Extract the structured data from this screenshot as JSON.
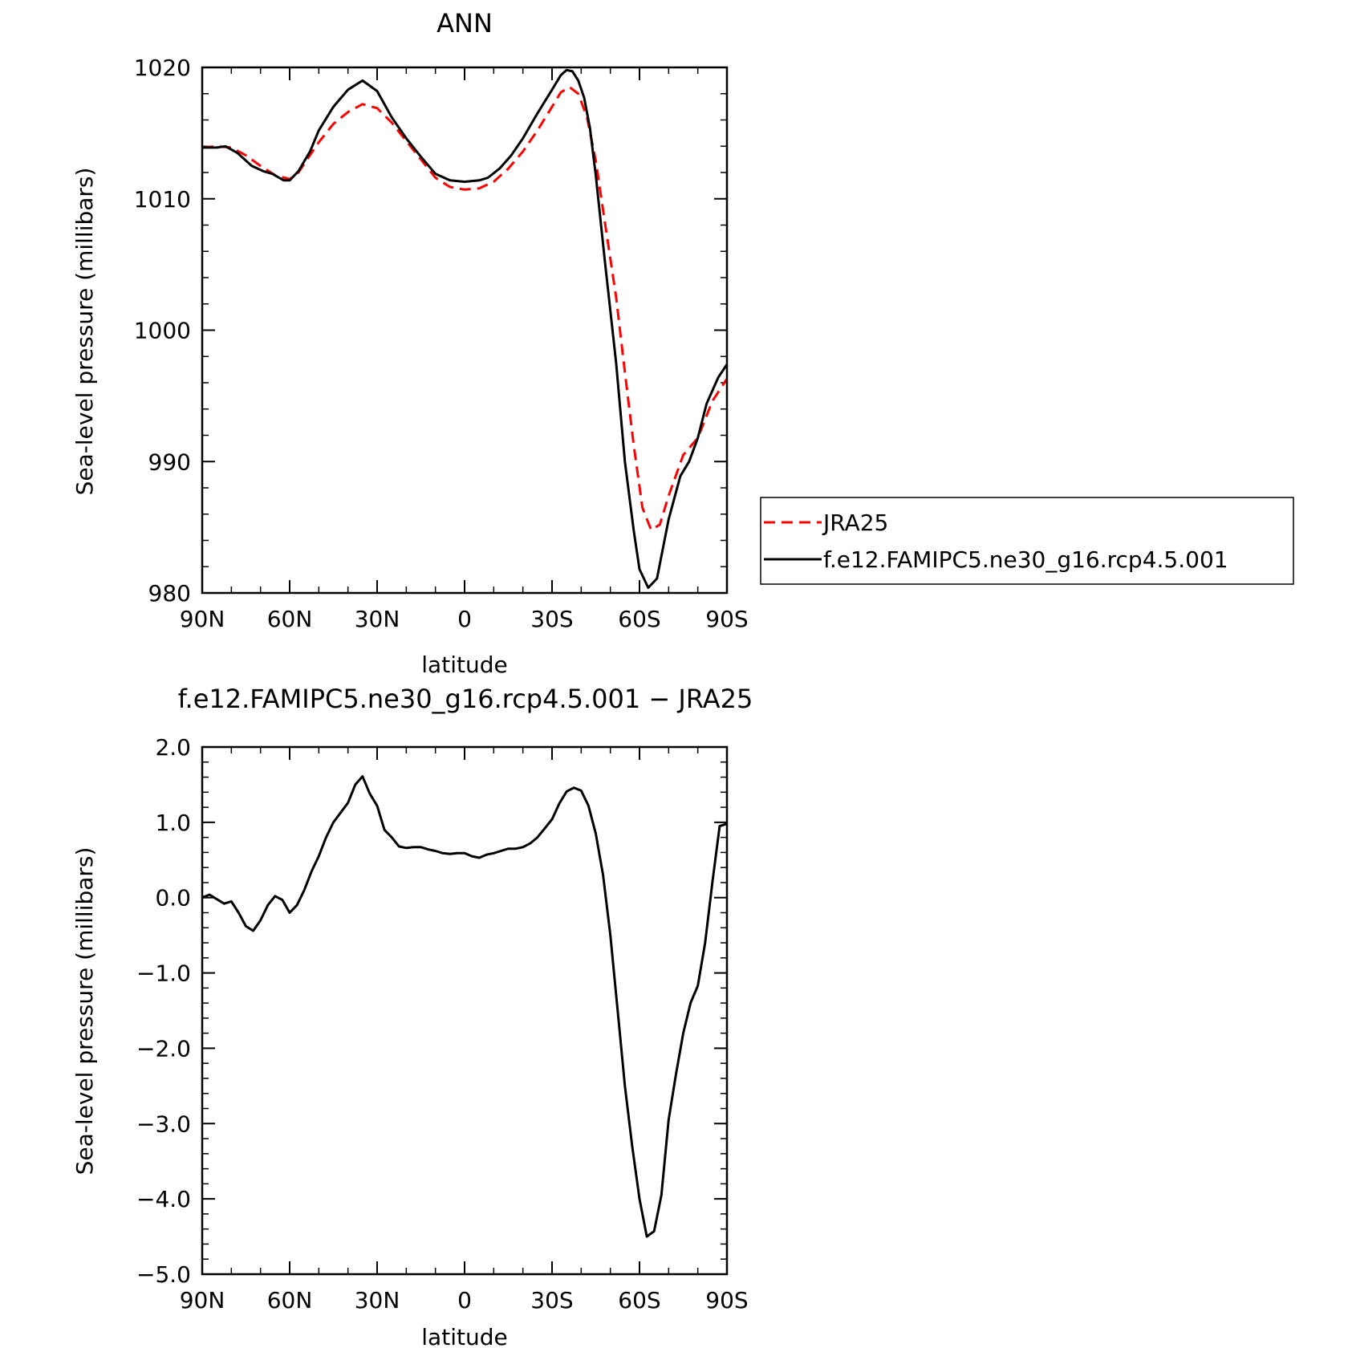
{
  "chart_data": [
    {
      "type": "line",
      "title": "ANN",
      "xlabel": "latitude",
      "ylabel": "Sea-level pressure (millibars)",
      "xlim": [
        90,
        -90
      ],
      "ylim": [
        980,
        1020
      ],
      "x_ticks": [
        {
          "value": 90,
          "label": "90N"
        },
        {
          "value": 60,
          "label": "60N"
        },
        {
          "value": 30,
          "label": "30N"
        },
        {
          "value": 0,
          "label": "0"
        },
        {
          "value": -30,
          "label": "30S"
        },
        {
          "value": -60,
          "label": "60S"
        },
        {
          "value": -90,
          "label": "90S"
        }
      ],
      "y_ticks": [
        {
          "value": 1020,
          "label": "1020"
        },
        {
          "value": 1010,
          "label": "1010"
        },
        {
          "value": 1000,
          "label": "1000"
        },
        {
          "value": 990,
          "label": "990"
        },
        {
          "value": 980,
          "label": "980"
        }
      ],
      "legend_position": "right",
      "series": [
        {
          "name": "JRA25",
          "color": "#ff0000",
          "dash": true,
          "points": [
            [
              90,
              1013.9
            ],
            [
              85,
              1014.0
            ],
            [
              80,
              1013.9
            ],
            [
              75,
              1013.3
            ],
            [
              70,
              1012.5
            ],
            [
              65,
              1011.8
            ],
            [
              60,
              1011.5
            ],
            [
              57,
              1012.0
            ],
            [
              54,
              1013.0
            ],
            [
              50,
              1014.3
            ],
            [
              45,
              1015.7
            ],
            [
              40,
              1016.6
            ],
            [
              35,
              1017.2
            ],
            [
              30,
              1016.9
            ],
            [
              25,
              1015.8
            ],
            [
              20,
              1014.4
            ],
            [
              15,
              1013.0
            ],
            [
              10,
              1011.6
            ],
            [
              5,
              1010.9
            ],
            [
              0,
              1010.7
            ],
            [
              -5,
              1010.8
            ],
            [
              -10,
              1011.3
            ],
            [
              -15,
              1012.3
            ],
            [
              -20,
              1013.6
            ],
            [
              -25,
              1015.2
            ],
            [
              -30,
              1017.0
            ],
            [
              -33,
              1018.1
            ],
            [
              -36,
              1018.5
            ],
            [
              -39,
              1018.0
            ],
            [
              -42,
              1016.2
            ],
            [
              -45,
              1012.9
            ],
            [
              -48,
              1008.4
            ],
            [
              -52,
              1002.5
            ],
            [
              -55,
              996.8
            ],
            [
              -58,
              991.3
            ],
            [
              -61,
              986.5
            ],
            [
              -64,
              984.8
            ],
            [
              -67,
              985.2
            ],
            [
              -70,
              987.4
            ],
            [
              -75,
              990.5
            ],
            [
              -80,
              991.8
            ],
            [
              -85,
              994.6
            ],
            [
              -90,
              996.3
            ]
          ]
        },
        {
          "name": "f.e12.FAMIPC5.ne30_g16.rcp4.5.001",
          "color": "#000000",
          "dash": false,
          "points": [
            [
              90,
              1013.9
            ],
            [
              85,
              1013.9
            ],
            [
              82,
              1014.0
            ],
            [
              78,
              1013.5
            ],
            [
              73,
              1012.5
            ],
            [
              69,
              1012.1
            ],
            [
              66,
              1011.9
            ],
            [
              62,
              1011.4
            ],
            [
              60,
              1011.4
            ],
            [
              57,
              1012.1
            ],
            [
              53,
              1013.6
            ],
            [
              50,
              1015.2
            ],
            [
              45,
              1017.0
            ],
            [
              40,
              1018.3
            ],
            [
              35,
              1019.0
            ],
            [
              30,
              1018.2
            ],
            [
              25,
              1016.2
            ],
            [
              20,
              1014.6
            ],
            [
              15,
              1013.2
            ],
            [
              10,
              1011.9
            ],
            [
              5,
              1011.4
            ],
            [
              0,
              1011.3
            ],
            [
              -5,
              1011.4
            ],
            [
              -8,
              1011.6
            ],
            [
              -12,
              1012.3
            ],
            [
              -16,
              1013.3
            ],
            [
              -20,
              1014.6
            ],
            [
              -25,
              1016.5
            ],
            [
              -30,
              1018.3
            ],
            [
              -33,
              1019.4
            ],
            [
              -35,
              1019.8
            ],
            [
              -37,
              1019.7
            ],
            [
              -39,
              1019.0
            ],
            [
              -41,
              1017.7
            ],
            [
              -43,
              1015.4
            ],
            [
              -45,
              1011.8
            ],
            [
              -48,
              1005.5
            ],
            [
              -52,
              997.5
            ],
            [
              -55,
              990.0
            ],
            [
              -58,
              984.8
            ],
            [
              -60,
              981.8
            ],
            [
              -63,
              980.4
            ],
            [
              -66,
              981.1
            ],
            [
              -70,
              985.6
            ],
            [
              -74,
              988.9
            ],
            [
              -77,
              990.0
            ],
            [
              -80,
              991.8
            ],
            [
              -83,
              994.4
            ],
            [
              -87,
              996.4
            ],
            [
              -90,
              997.4
            ]
          ]
        }
      ]
    },
    {
      "type": "line",
      "title": "f.e12.FAMIPC5.ne30_g16.rcp4.5.001 − JRA25",
      "xlabel": "latitude",
      "ylabel": "Sea-level pressure (millibars)",
      "xlim": [
        90,
        -90
      ],
      "ylim": [
        -5.0,
        2.0
      ],
      "x_ticks": [
        {
          "value": 90,
          "label": "90N"
        },
        {
          "value": 60,
          "label": "60N"
        },
        {
          "value": 30,
          "label": "30N"
        },
        {
          "value": 0,
          "label": "0"
        },
        {
          "value": -30,
          "label": "30S"
        },
        {
          "value": -60,
          "label": "60S"
        },
        {
          "value": -90,
          "label": "90S"
        }
      ],
      "y_ticks": [
        {
          "value": 2.0,
          "label": "2.0"
        },
        {
          "value": 1.0,
          "label": "1.0"
        },
        {
          "value": 0.0,
          "label": "0.0"
        },
        {
          "value": -1.0,
          "label": "−1.0"
        },
        {
          "value": -2.0,
          "label": "−2.0"
        },
        {
          "value": -3.0,
          "label": "−3.0"
        },
        {
          "value": -4.0,
          "label": "−4.0"
        },
        {
          "value": -5.0,
          "label": "−5.0"
        }
      ],
      "series": [
        {
          "color": "#000000",
          "dash": false,
          "points": [
            [
              90,
              0.0
            ],
            [
              87.5,
              0.04
            ],
            [
              85,
              -0.02
            ],
            [
              82.5,
              -0.08
            ],
            [
              80,
              -0.05
            ],
            [
              77.5,
              -0.2
            ],
            [
              75,
              -0.38
            ],
            [
              72.5,
              -0.44
            ],
            [
              70,
              -0.3
            ],
            [
              67.5,
              -0.1
            ],
            [
              65,
              0.02
            ],
            [
              62.5,
              -0.03
            ],
            [
              60,
              -0.2
            ],
            [
              57.5,
              -0.1
            ],
            [
              55,
              0.1
            ],
            [
              52.5,
              0.35
            ],
            [
              50,
              0.55
            ],
            [
              47.5,
              0.8
            ],
            [
              45,
              1.0
            ],
            [
              42.5,
              1.13
            ],
            [
              40,
              1.26
            ],
            [
              37.5,
              1.5
            ],
            [
              35,
              1.61
            ],
            [
              32.5,
              1.38
            ],
            [
              30,
              1.22
            ],
            [
              27.5,
              0.9
            ],
            [
              25,
              0.8
            ],
            [
              22.5,
              0.68
            ],
            [
              20,
              0.66
            ],
            [
              17.5,
              0.67
            ],
            [
              15,
              0.67
            ],
            [
              12.5,
              0.64
            ],
            [
              10,
              0.62
            ],
            [
              7.5,
              0.59
            ],
            [
              5,
              0.58
            ],
            [
              2.5,
              0.59
            ],
            [
              0,
              0.59
            ],
            [
              -2.5,
              0.55
            ],
            [
              -5,
              0.53
            ],
            [
              -7.5,
              0.57
            ],
            [
              -10,
              0.59
            ],
            [
              -12.5,
              0.62
            ],
            [
              -15,
              0.65
            ],
            [
              -17.5,
              0.65
            ],
            [
              -20,
              0.67
            ],
            [
              -22.5,
              0.72
            ],
            [
              -25,
              0.8
            ],
            [
              -27.5,
              0.92
            ],
            [
              -30,
              1.04
            ],
            [
              -32.5,
              1.25
            ],
            [
              -35,
              1.41
            ],
            [
              -37.5,
              1.46
            ],
            [
              -40,
              1.42
            ],
            [
              -42.5,
              1.22
            ],
            [
              -45,
              0.85
            ],
            [
              -47.5,
              0.3
            ],
            [
              -50,
              -0.5
            ],
            [
              -52.5,
              -1.5
            ],
            [
              -55,
              -2.5
            ],
            [
              -57.5,
              -3.3
            ],
            [
              -60,
              -4.0
            ],
            [
              -62.5,
              -4.5
            ],
            [
              -65,
              -4.43
            ],
            [
              -67.5,
              -3.95
            ],
            [
              -70,
              -2.95
            ],
            [
              -72.5,
              -2.35
            ],
            [
              -75,
              -1.8
            ],
            [
              -77.5,
              -1.4
            ],
            [
              -80,
              -1.17
            ],
            [
              -82.5,
              -0.6
            ],
            [
              -85,
              0.2
            ],
            [
              -87.5,
              0.95
            ],
            [
              -90,
              0.98
            ]
          ]
        }
      ]
    }
  ]
}
